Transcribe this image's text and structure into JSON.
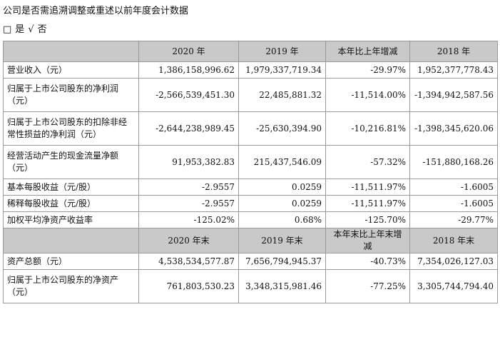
{
  "heading": "公司是否需追溯调整或重述以前年度会计数据",
  "options": {
    "box": "□",
    "yes": "是",
    "check": "√",
    "no": "否"
  },
  "table": {
    "header1": [
      "",
      "2020 年",
      "2019 年",
      "本年比上年增减",
      "2018 年"
    ],
    "rows1": [
      {
        "label": "营业收入（元）",
        "values": [
          "1,386,158,996.62",
          "1,979,337,719.34",
          "-29.97%",
          "1,952,377,778.43"
        ]
      },
      {
        "label": "归属于上市公司股东的净利润（元）",
        "values": [
          "-2,566,539,451.30",
          "22,485,881.32",
          "-11,514.00%",
          "-1,394,942,587.56"
        ]
      },
      {
        "label": "归属于上市公司股东的扣除非经常性损益的净利润（元）",
        "values": [
          "-2,644,238,989.45",
          "-25,630,394.90",
          "-10,216.81%",
          "-1,398,345,620.06"
        ]
      },
      {
        "label": "经营活动产生的现金流量净额（元）",
        "values": [
          "91,953,382.83",
          "215,437,546.09",
          "-57.32%",
          "-151,880,168.26"
        ]
      },
      {
        "label": "基本每股收益（元/股）",
        "values": [
          "-2.9557",
          "0.0259",
          "-11,511.97%",
          "-1.6005"
        ]
      },
      {
        "label": "稀释每股收益（元/股）",
        "values": [
          "-2.9557",
          "0.0259",
          "-11,511.97%",
          "-1.6005"
        ]
      },
      {
        "label": "加权平均净资产收益率",
        "values": [
          "-125.02%",
          "0.68%",
          "-125.70%",
          "-29.77%"
        ]
      }
    ],
    "header2": [
      "",
      "2020 年末",
      "2019 年末",
      "本年末比上年末增减",
      "2018 年末"
    ],
    "rows2": [
      {
        "label": "资产总额（元）",
        "values": [
          "4,538,534,577.87",
          "7,656,794,945.37",
          "-40.73%",
          "7,354,026,127.03"
        ]
      },
      {
        "label": "归属于上市公司股东的净资产（元）",
        "values": [
          "761,803,530.23",
          "3,348,315,981.46",
          "-77.25%",
          "3,305,744,794.40"
        ]
      }
    ]
  }
}
